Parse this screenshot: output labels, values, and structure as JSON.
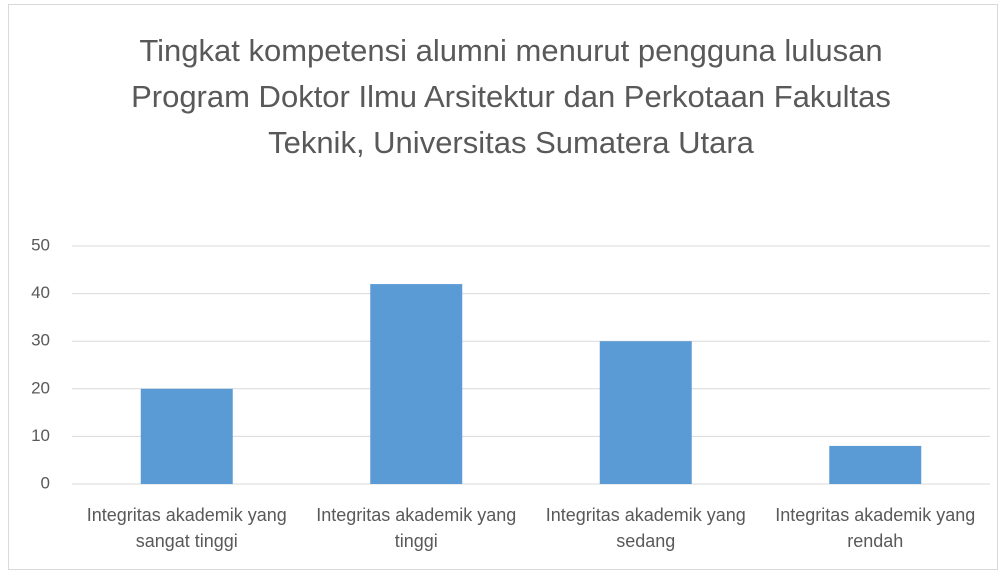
{
  "chart_data": {
    "type": "bar",
    "title": "Tingkat kompetensi alumni menurut pengguna lulusan Program Doktor Ilmu Arsitektur dan Perkotaan Fakultas Teknik, Universitas Sumatera Utara",
    "categories": [
      "Integritas akademik yang sangat tinggi",
      "Integritas akademik yang tinggi",
      "Integritas akademik yang sedang",
      "Integritas akademik yang rendah"
    ],
    "values": [
      20,
      42,
      30,
      8
    ],
    "color": "#5b9bd5",
    "ylim": [
      0,
      50
    ],
    "yticks": [
      0,
      10,
      20,
      30,
      40,
      50
    ],
    "grid": true
  }
}
